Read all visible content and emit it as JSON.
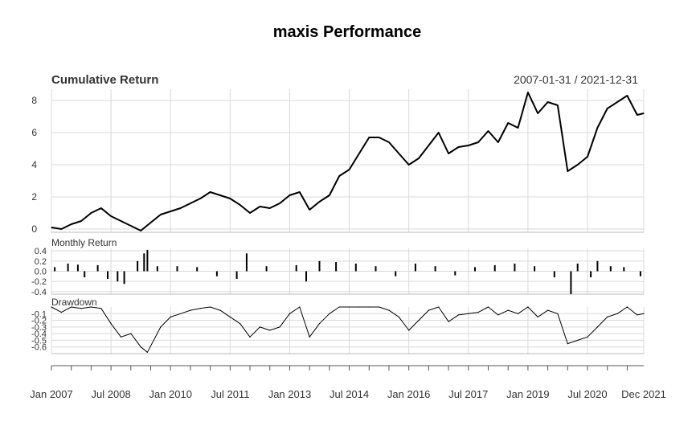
{
  "chart_data": {
    "type": "line",
    "title": "maxis Performance",
    "panels": [
      {
        "name": "Cumulative Return",
        "type": "line",
        "date_range_label": "2007-01-31 / 2021-12-31",
        "ylim": [
          -0.2,
          8.7
        ],
        "yticks": [
          "0",
          "2",
          "4",
          "6",
          "8"
        ],
        "grid": true,
        "series": [
          {
            "color": "#000000",
            "points": [
              [
                "2007-01",
                0.1
              ],
              [
                "2007-04",
                0.0
              ],
              [
                "2007-07",
                0.3
              ],
              [
                "2007-10",
                0.5
              ],
              [
                "2008-01",
                1.0
              ],
              [
                "2008-04",
                1.3
              ],
              [
                "2008-07",
                0.8
              ],
              [
                "2008-10",
                0.5
              ],
              [
                "2009-01",
                0.2
              ],
              [
                "2009-04",
                -0.1
              ],
              [
                "2009-07",
                0.4
              ],
              [
                "2009-10",
                0.9
              ],
              [
                "2010-01",
                1.1
              ],
              [
                "2010-04",
                1.3
              ],
              [
                "2010-07",
                1.6
              ],
              [
                "2010-10",
                1.9
              ],
              [
                "2011-01",
                2.3
              ],
              [
                "2011-04",
                2.1
              ],
              [
                "2011-07",
                1.9
              ],
              [
                "2011-10",
                1.5
              ],
              [
                "2012-01",
                1.0
              ],
              [
                "2012-04",
                1.4
              ],
              [
                "2012-07",
                1.3
              ],
              [
                "2012-10",
                1.6
              ],
              [
                "2013-01",
                2.1
              ],
              [
                "2013-04",
                2.3
              ],
              [
                "2013-07",
                1.2
              ],
              [
                "2013-10",
                1.7
              ],
              [
                "2014-01",
                2.1
              ],
              [
                "2014-04",
                3.3
              ],
              [
                "2014-07",
                3.7
              ],
              [
                "2014-10",
                4.7
              ],
              [
                "2015-01",
                5.7
              ],
              [
                "2015-04",
                5.7
              ],
              [
                "2015-07",
                5.4
              ],
              [
                "2015-10",
                4.7
              ],
              [
                "2016-01",
                4.0
              ],
              [
                "2016-04",
                4.4
              ],
              [
                "2016-07",
                5.2
              ],
              [
                "2016-10",
                6.0
              ],
              [
                "2017-01",
                4.7
              ],
              [
                "2017-04",
                5.1
              ],
              [
                "2017-07",
                5.2
              ],
              [
                "2017-10",
                5.4
              ],
              [
                "2018-01",
                6.1
              ],
              [
                "2018-04",
                5.4
              ],
              [
                "2018-07",
                6.6
              ],
              [
                "2018-10",
                6.3
              ],
              [
                "2019-01",
                8.5
              ],
              [
                "2019-04",
                7.2
              ],
              [
                "2019-07",
                7.9
              ],
              [
                "2019-10",
                7.7
              ],
              [
                "2020-01",
                3.6
              ],
              [
                "2020-04",
                4.0
              ],
              [
                "2020-07",
                4.5
              ],
              [
                "2020-10",
                6.3
              ],
              [
                "2021-01",
                7.5
              ],
              [
                "2021-04",
                7.9
              ],
              [
                "2021-07",
                8.3
              ],
              [
                "2021-10",
                7.1
              ],
              [
                "2021-12",
                7.2
              ]
            ]
          }
        ]
      },
      {
        "name": "Monthly Return",
        "type": "bar",
        "ylim": [
          -0.45,
          0.45
        ],
        "yticks": [
          "0.4",
          "0.2",
          "0.0",
          "-0.2",
          "-0.4"
        ],
        "grid": true,
        "series": [
          {
            "color": "#000000",
            "values": [
              [
                "2007-02",
                0.08
              ],
              [
                "2007-06",
                0.15
              ],
              [
                "2007-09",
                0.13
              ],
              [
                "2007-11",
                -0.12
              ],
              [
                "2008-03",
                0.12
              ],
              [
                "2008-06",
                -0.15
              ],
              [
                "2008-09",
                -0.2
              ],
              [
                "2008-11",
                -0.25
              ],
              [
                "2009-03",
                0.2
              ],
              [
                "2009-05",
                0.35
              ],
              [
                "2009-06",
                0.42
              ],
              [
                "2009-09",
                0.1
              ],
              [
                "2010-03",
                0.1
              ],
              [
                "2010-09",
                0.08
              ],
              [
                "2011-03",
                -0.1
              ],
              [
                "2011-09",
                -0.15
              ],
              [
                "2011-12",
                0.35
              ],
              [
                "2012-06",
                0.1
              ],
              [
                "2013-03",
                0.12
              ],
              [
                "2013-06",
                -0.2
              ],
              [
                "2013-10",
                0.2
              ],
              [
                "2014-03",
                0.18
              ],
              [
                "2014-09",
                0.15
              ],
              [
                "2015-03",
                0.1
              ],
              [
                "2015-09",
                -0.1
              ],
              [
                "2016-03",
                0.15
              ],
              [
                "2016-09",
                0.1
              ],
              [
                "2017-03",
                -0.08
              ],
              [
                "2017-09",
                0.08
              ],
              [
                "2018-03",
                0.12
              ],
              [
                "2018-09",
                0.15
              ],
              [
                "2019-03",
                0.1
              ],
              [
                "2019-09",
                -0.12
              ],
              [
                "2020-02",
                -0.45
              ],
              [
                "2020-04",
                0.15
              ],
              [
                "2020-08",
                -0.12
              ],
              [
                "2020-10",
                0.2
              ],
              [
                "2021-02",
                0.1
              ],
              [
                "2021-06",
                0.08
              ],
              [
                "2021-11",
                -0.1
              ]
            ]
          }
        ]
      },
      {
        "name": "Drawdown",
        "type": "line",
        "ylim": [
          -0.7,
          0.0
        ],
        "yticks": [
          "-0.1",
          "-0.2",
          "-0.3",
          "-0.4",
          "-0.5",
          "-0.6"
        ],
        "grid": true,
        "series": [
          {
            "color": "#000000",
            "points": [
              [
                "2007-01",
                0.0
              ],
              [
                "2007-04",
                -0.08
              ],
              [
                "2007-07",
                0.0
              ],
              [
                "2007-10",
                -0.02
              ],
              [
                "2008-01",
                0.0
              ],
              [
                "2008-04",
                -0.02
              ],
              [
                "2008-07",
                -0.25
              ],
              [
                "2008-10",
                -0.45
              ],
              [
                "2009-01",
                -0.4
              ],
              [
                "2009-04",
                -0.6
              ],
              [
                "2009-06",
                -0.68
              ],
              [
                "2009-10",
                -0.3
              ],
              [
                "2010-01",
                -0.15
              ],
              [
                "2010-04",
                -0.1
              ],
              [
                "2010-07",
                -0.05
              ],
              [
                "2010-10",
                -0.02
              ],
              [
                "2011-01",
                0.0
              ],
              [
                "2011-04",
                -0.05
              ],
              [
                "2011-07",
                -0.15
              ],
              [
                "2011-10",
                -0.25
              ],
              [
                "2012-01",
                -0.45
              ],
              [
                "2012-04",
                -0.3
              ],
              [
                "2012-07",
                -0.35
              ],
              [
                "2012-10",
                -0.3
              ],
              [
                "2013-01",
                -0.1
              ],
              [
                "2013-04",
                0.0
              ],
              [
                "2013-07",
                -0.45
              ],
              [
                "2013-10",
                -0.25
              ],
              [
                "2014-01",
                -0.1
              ],
              [
                "2014-04",
                0.0
              ],
              [
                "2014-07",
                0.0
              ],
              [
                "2014-10",
                0.0
              ],
              [
                "2015-01",
                0.0
              ],
              [
                "2015-04",
                0.0
              ],
              [
                "2015-07",
                -0.05
              ],
              [
                "2015-10",
                -0.15
              ],
              [
                "2016-01",
                -0.35
              ],
              [
                "2016-04",
                -0.2
              ],
              [
                "2016-07",
                -0.05
              ],
              [
                "2016-10",
                0.0
              ],
              [
                "2017-01",
                -0.22
              ],
              [
                "2017-04",
                -0.12
              ],
              [
                "2017-07",
                -0.1
              ],
              [
                "2017-10",
                -0.08
              ],
              [
                "2018-01",
                0.0
              ],
              [
                "2018-04",
                -0.12
              ],
              [
                "2018-07",
                -0.05
              ],
              [
                "2018-10",
                -0.1
              ],
              [
                "2019-01",
                0.0
              ],
              [
                "2019-04",
                -0.15
              ],
              [
                "2019-07",
                -0.05
              ],
              [
                "2019-10",
                -0.1
              ],
              [
                "2020-01",
                -0.55
              ],
              [
                "2020-04",
                -0.5
              ],
              [
                "2020-07",
                -0.45
              ],
              [
                "2020-10",
                -0.3
              ],
              [
                "2021-01",
                -0.15
              ],
              [
                "2021-04",
                -0.1
              ],
              [
                "2021-07",
                0.0
              ],
              [
                "2021-10",
                -0.12
              ],
              [
                "2021-12",
                -0.1
              ]
            ]
          }
        ]
      }
    ],
    "xaxis": {
      "start": "2007-01",
      "end": "2021-12",
      "tick_labels": [
        [
          "2007-01",
          "Jan 2007"
        ],
        [
          "2008-07",
          "Jul 2008"
        ],
        [
          "2010-01",
          "Jan 2010"
        ],
        [
          "2011-07",
          "Jul 2011"
        ],
        [
          "2013-01",
          "Jan 2013"
        ],
        [
          "2014-07",
          "Jul 2014"
        ],
        [
          "2016-01",
          "Jan 2016"
        ],
        [
          "2017-07",
          "Jul 2017"
        ],
        [
          "2019-01",
          "Jan 2019"
        ],
        [
          "2020-07",
          "Jul 2020"
        ],
        [
          "2021-12",
          "Dec 2021"
        ]
      ]
    }
  }
}
